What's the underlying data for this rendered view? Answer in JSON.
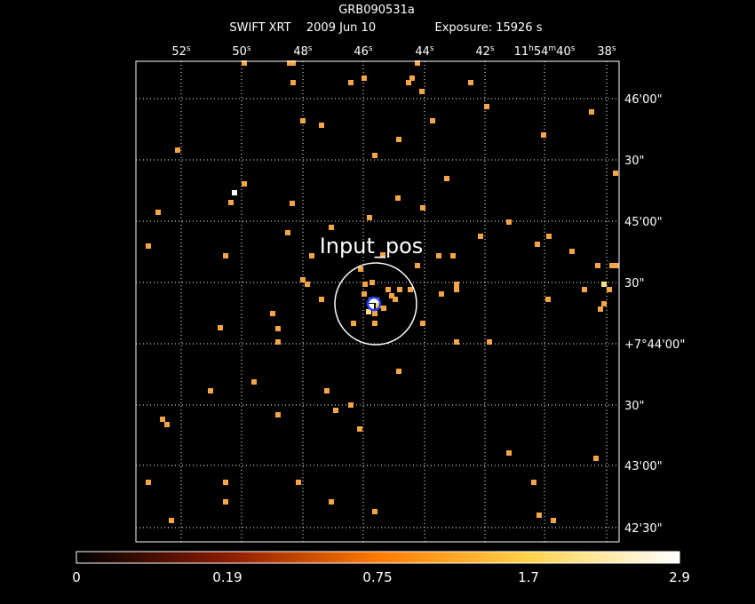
{
  "title": "GRB090531a",
  "subtitle": {
    "instrument": "SWIFT XRT",
    "date": "2009 Jun 10",
    "exposure": "Exposure: 15926 s"
  },
  "source_label": "Input_pos",
  "ra_labels": [
    {
      "parts": [
        "52",
        "s"
      ]
    },
    {
      "parts": [
        "50",
        "s"
      ]
    },
    {
      "parts": [
        "48",
        "s"
      ]
    },
    {
      "parts": [
        "46",
        "s"
      ]
    },
    {
      "parts": [
        "44",
        "s"
      ]
    },
    {
      "parts": [
        "42",
        "s"
      ]
    },
    {
      "parts": [
        "11",
        "h",
        "54",
        "m",
        "40",
        "s"
      ]
    },
    {
      "parts": [
        "38",
        "s"
      ]
    }
  ],
  "dec_labels": [
    "46'00\"",
    "30\"",
    "45'00\"",
    "30\"",
    "+7°44'00\"",
    "30\"",
    "43'00\"",
    "42'30\""
  ],
  "colorbar_labels": [
    "0",
    "0.19",
    "0.75",
    "1.7",
    "2.9"
  ]
}
